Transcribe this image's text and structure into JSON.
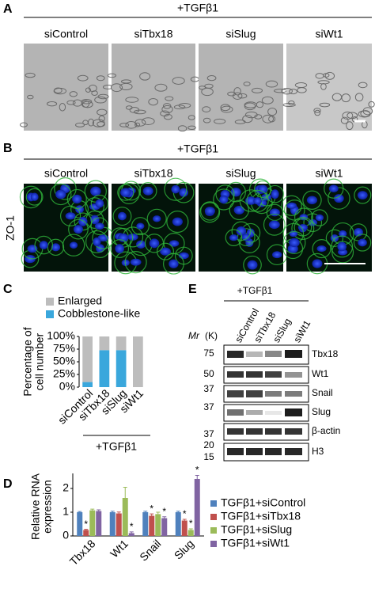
{
  "panel_a": {
    "letter": "A",
    "treatment": "+TGFβ1",
    "conditions": [
      "siControl",
      "siTbx18",
      "siSlug",
      "siWt1"
    ]
  },
  "panel_b": {
    "letter": "B",
    "treatment": "+TGFβ1",
    "conditions": [
      "siControl",
      "siTbx18",
      "siSlug",
      "siWt1"
    ],
    "stain": "ZO-1"
  },
  "chart_data": [
    {
      "type": "stacked_bar",
      "panel": "C",
      "ylabel": [
        "Percentage of",
        "cell number"
      ],
      "annotation": "+TGFβ1",
      "categories": [
        "siControl",
        "siTbx18",
        "siSlug",
        "siWt1"
      ],
      "series": [
        {
          "name": "Enlarged",
          "color": "#bdbdbd",
          "values": [
            90,
            27,
            27,
            100
          ]
        },
        {
          "name": "Cobblestone-like",
          "color": "#3aa7dc",
          "values": [
            10,
            73,
            73,
            0
          ]
        }
      ],
      "ylim": [
        0,
        100
      ],
      "yticks": [
        {
          "value": 0,
          "label": "0%"
        },
        {
          "value": 25,
          "label": "25%"
        },
        {
          "value": 50,
          "label": "50%"
        },
        {
          "value": 75,
          "label": "75%"
        },
        {
          "value": 100,
          "label": "100%"
        }
      ]
    },
    {
      "type": "grouped_bar",
      "panel": "D",
      "ylabel": [
        "Relative RNA",
        "expression"
      ],
      "categories": [
        "Tbx18",
        "Wt1",
        "Snail",
        "Slug"
      ],
      "series": [
        {
          "name": "TGFβ1+siControl",
          "color": "#4f81bd",
          "values": [
            1,
            1,
            1,
            1
          ],
          "errors": [
            0.03,
            0.04,
            0.04,
            0.04
          ],
          "significance": [
            null,
            null,
            null,
            null
          ]
        },
        {
          "name": "TGFβ1+siTbx18",
          "color": "#c0504d",
          "values": [
            0.25,
            0.95,
            0.85,
            0.65
          ],
          "errors": [
            0.03,
            0.06,
            0.08,
            0.05
          ],
          "significance": [
            "*",
            null,
            "*",
            "*"
          ]
        },
        {
          "name": "TGFβ1+siSlug",
          "color": "#9bbb59",
          "values": [
            1.08,
            1.6,
            0.92,
            0.25
          ],
          "errors": [
            0.05,
            0.45,
            0.08,
            0.05
          ],
          "significance": [
            null,
            null,
            null,
            "*"
          ]
        },
        {
          "name": "TGFβ1+siWt1",
          "color": "#8064a2",
          "values": [
            1.05,
            0.12,
            0.75,
            2.4
          ],
          "errors": [
            0.05,
            0.05,
            0.06,
            0.15
          ],
          "significance": [
            null,
            "*",
            "*",
            "*"
          ]
        }
      ],
      "ylim": [
        0,
        2.5
      ],
      "yticks": [
        0,
        1,
        2
      ]
    }
  ],
  "panel_e": {
    "letter": "E",
    "treatment": "+TGFβ1",
    "mr": "Mr",
    "mr_unit": "(K)",
    "lanes": [
      "siControl",
      "siTbx18",
      "siSlug",
      "siWt1"
    ],
    "rows": [
      {
        "protein": "Tbx18",
        "markers": [
          "75"
        ]
      },
      {
        "protein": "Wt1",
        "markers": [
          "50"
        ]
      },
      {
        "protein": "Snail",
        "markers": [
          "37"
        ]
      },
      {
        "protein": "Slug",
        "markers": [
          "37"
        ]
      },
      {
        "protein": "β-actin",
        "markers": [
          "37"
        ]
      },
      {
        "protein": "H3",
        "markers": [
          "20",
          "15"
        ]
      }
    ]
  }
}
